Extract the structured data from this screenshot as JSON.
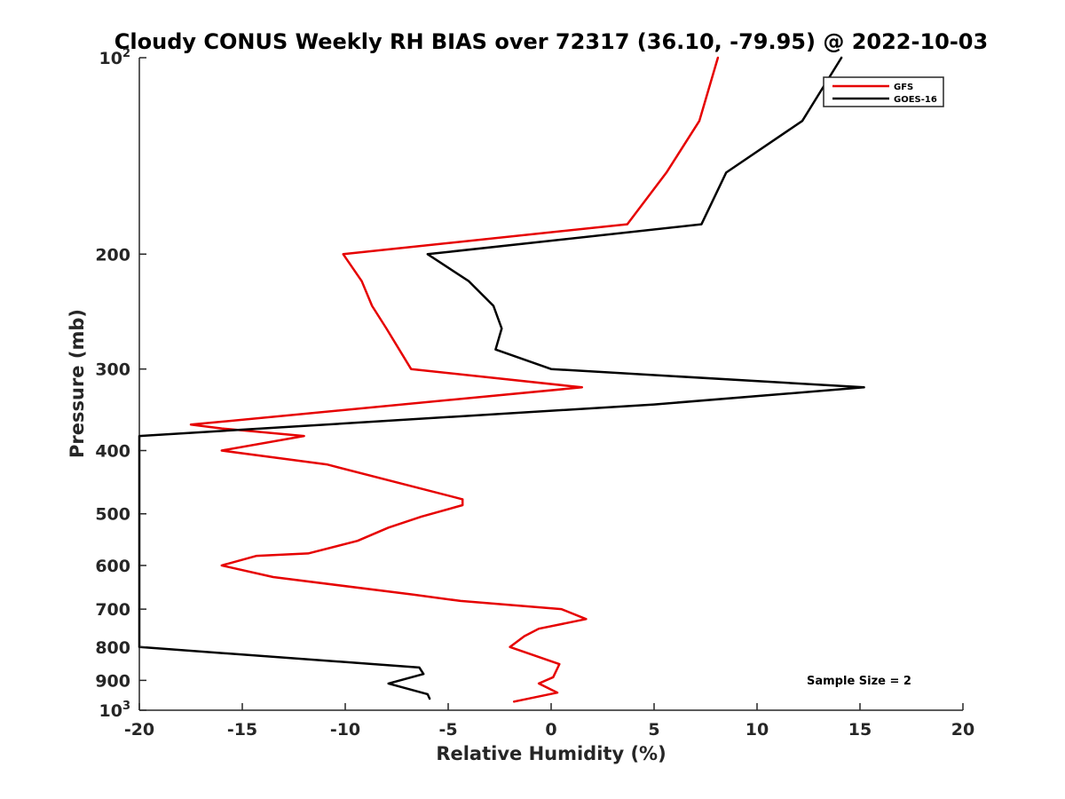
{
  "chart_data": {
    "type": "line",
    "title": "Cloudy CONUS Weekly RH BIAS over 72317 (36.10, -79.95) @ 2022-10-03",
    "xlabel": "Relative Humidity (%)",
    "ylabel": "Pressure (mb)",
    "xlim": [
      -20,
      20
    ],
    "ylim": [
      100,
      1000
    ],
    "y_scale": "log",
    "y_reversed": true,
    "x_ticks": [
      "-20",
      "-15",
      "-10",
      "-5",
      "0",
      "5",
      "10",
      "15",
      "20"
    ],
    "y_ticks": [
      {
        "value": 100,
        "label": "10",
        "sup": "2"
      },
      {
        "value": 200,
        "label": "200"
      },
      {
        "value": 300,
        "label": "300"
      },
      {
        "value": 400,
        "label": "400"
      },
      {
        "value": 500,
        "label": "500"
      },
      {
        "value": 600,
        "label": "600"
      },
      {
        "value": 700,
        "label": "700"
      },
      {
        "value": 800,
        "label": "800"
      },
      {
        "value": 900,
        "label": "900"
      },
      {
        "value": 1000,
        "label": "10",
        "sup": "3"
      }
    ],
    "grid": false,
    "legend_position": "top-right",
    "annotation": "Sample Size = 2",
    "series": [
      {
        "name": "GFS",
        "color": "#e60000",
        "points": [
          [
            8.1,
            100
          ],
          [
            7.2,
            125
          ],
          [
            5.6,
            150
          ],
          [
            3.7,
            180
          ],
          [
            -10.1,
            200
          ],
          [
            -9.2,
            220
          ],
          [
            -8.7,
            240
          ],
          [
            -8.0,
            260
          ],
          [
            -6.8,
            300
          ],
          [
            1.5,
            320
          ],
          [
            -17.5,
            365
          ],
          [
            -16.0,
            370
          ],
          [
            -12.0,
            380
          ],
          [
            -16.0,
            400
          ],
          [
            -10.9,
            420
          ],
          [
            -4.3,
            475
          ],
          [
            -4.3,
            485
          ],
          [
            -6.3,
            505
          ],
          [
            -7.9,
            525
          ],
          [
            -9.4,
            550
          ],
          [
            -11.8,
            575
          ],
          [
            -14.3,
            580
          ],
          [
            -16.0,
            600
          ],
          [
            -13.5,
            625
          ],
          [
            -6.7,
            665
          ],
          [
            -4.4,
            680
          ],
          [
            0.5,
            700
          ],
          [
            1.7,
            725
          ],
          [
            -0.6,
            750
          ],
          [
            -1.3,
            770
          ],
          [
            -2.0,
            800
          ],
          [
            0.4,
            850
          ],
          [
            0.1,
            890
          ],
          [
            -0.6,
            910
          ],
          [
            0.3,
            940
          ],
          [
            -1.8,
            970
          ]
        ]
      },
      {
        "name": "GOES-16",
        "color": "#000000",
        "points": [
          [
            14.1,
            100
          ],
          [
            12.2,
            125
          ],
          [
            8.5,
            150
          ],
          [
            7.3,
            180
          ],
          [
            -6.0,
            200
          ],
          [
            -4.0,
            220
          ],
          [
            -2.8,
            240
          ],
          [
            -2.4,
            260
          ],
          [
            -2.7,
            280
          ],
          [
            0.0,
            300
          ],
          [
            15.2,
            320
          ],
          [
            5.0,
            340
          ],
          [
            -20.0,
            380
          ],
          [
            -20.0,
            800
          ],
          [
            -8.6,
            850
          ],
          [
            -6.4,
            860
          ],
          [
            -6.2,
            880
          ],
          [
            -7.9,
            910
          ],
          [
            -6.0,
            945
          ],
          [
            -5.9,
            960
          ]
        ]
      }
    ]
  }
}
